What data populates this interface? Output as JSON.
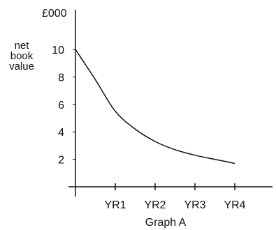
{
  "chart_data": {
    "type": "line",
    "title": "Graph A",
    "unit_label": "£000",
    "ylabel_lines": [
      "net",
      "book",
      "value"
    ],
    "xlabel": "",
    "categories": [
      "YR1",
      "YR2",
      "YR3",
      "YR4"
    ],
    "yticks": [
      2,
      4,
      6,
      8,
      10
    ],
    "ylim": [
      0,
      10.6
    ],
    "xlim": [
      0,
      4
    ],
    "grid": false,
    "series": [
      {
        "values": [
          {
            "x": 0,
            "y": 10.0
          },
          {
            "x": 0.5,
            "y": 7.8
          },
          {
            "x": 1,
            "y": 5.5
          },
          {
            "x": 1.5,
            "y": 4.2
          },
          {
            "x": 2,
            "y": 3.3
          },
          {
            "x": 2.5,
            "y": 2.7
          },
          {
            "x": 3,
            "y": 2.3
          },
          {
            "x": 3.5,
            "y": 2.0
          },
          {
            "x": 4,
            "y": 1.7
          }
        ]
      }
    ]
  }
}
